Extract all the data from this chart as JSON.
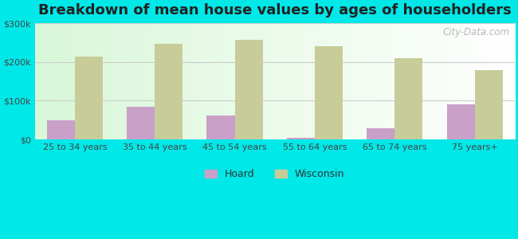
{
  "title": "Breakdown of mean house values by ages of householders",
  "categories": [
    "25 to 34 years",
    "35 to 44 years",
    "45 to 54 years",
    "55 to 64 years",
    "65 to 74 years",
    "75 years+"
  ],
  "hoard_values": [
    50000,
    85000,
    62000,
    5000,
    28000,
    90000
  ],
  "wisconsin_values": [
    215000,
    248000,
    258000,
    240000,
    210000,
    180000
  ],
  "hoard_color": "#c8a0c8",
  "wisconsin_color": "#c8cc99",
  "background_outer": "#00e8e8",
  "ylim": [
    0,
    300000
  ],
  "yticks": [
    0,
    100000,
    200000,
    300000
  ],
  "ytick_labels": [
    "$0",
    "$100k",
    "$200k",
    "$300k"
  ],
  "legend_labels": [
    "Hoard",
    "Wisconsin"
  ],
  "bar_width": 0.35,
  "title_fontsize": 13,
  "watermark": "City-Data.com"
}
